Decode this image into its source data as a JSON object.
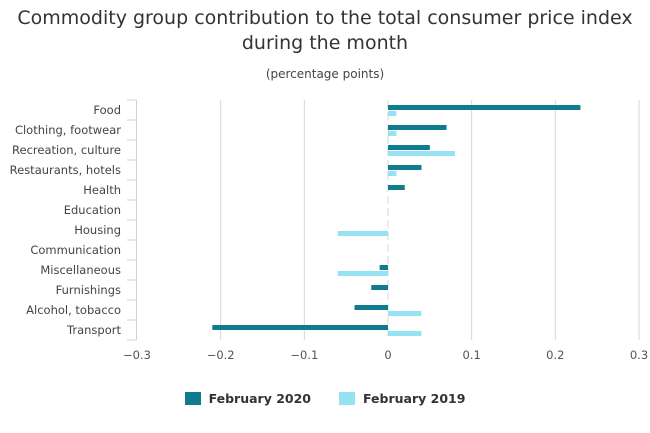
{
  "chart_data": {
    "type": "bar",
    "orientation": "horizontal",
    "title": "Commodity group contribution to the total consumer price index during the month",
    "subtitle": "(percentage points)",
    "xlabel": "",
    "ylabel": "",
    "xlim": [
      -0.3,
      0.3
    ],
    "xticks": [
      "−0.3",
      "−0.2",
      "−0.1",
      "0",
      "0.1",
      "0.2",
      "0.3"
    ],
    "xtick_values": [
      -0.3,
      -0.2,
      -0.1,
      0,
      0.1,
      0.2,
      0.3
    ],
    "grid": true,
    "legend_position": "bottom",
    "categories": [
      "Food",
      "Clothing, footwear",
      "Recreation, culture",
      "Restaurants, hotels",
      "Health",
      "Education",
      "Housing",
      "Communication",
      "Miscellaneous",
      "Furnishings",
      "Alcohol, tobacco",
      "Transport"
    ],
    "series": [
      {
        "name": "February 2020",
        "color": "#0e7b8f",
        "values": [
          0.23,
          0.07,
          0.05,
          0.04,
          0.02,
          0.0,
          0.0,
          0.0,
          -0.01,
          -0.02,
          -0.04,
          -0.21
        ]
      },
      {
        "name": "February 2019",
        "color": "#95e3f2",
        "values": [
          0.01,
          0.01,
          0.08,
          0.01,
          0.0,
          0.0,
          -0.06,
          0.0,
          -0.06,
          0.0,
          0.04,
          0.04
        ]
      }
    ]
  }
}
